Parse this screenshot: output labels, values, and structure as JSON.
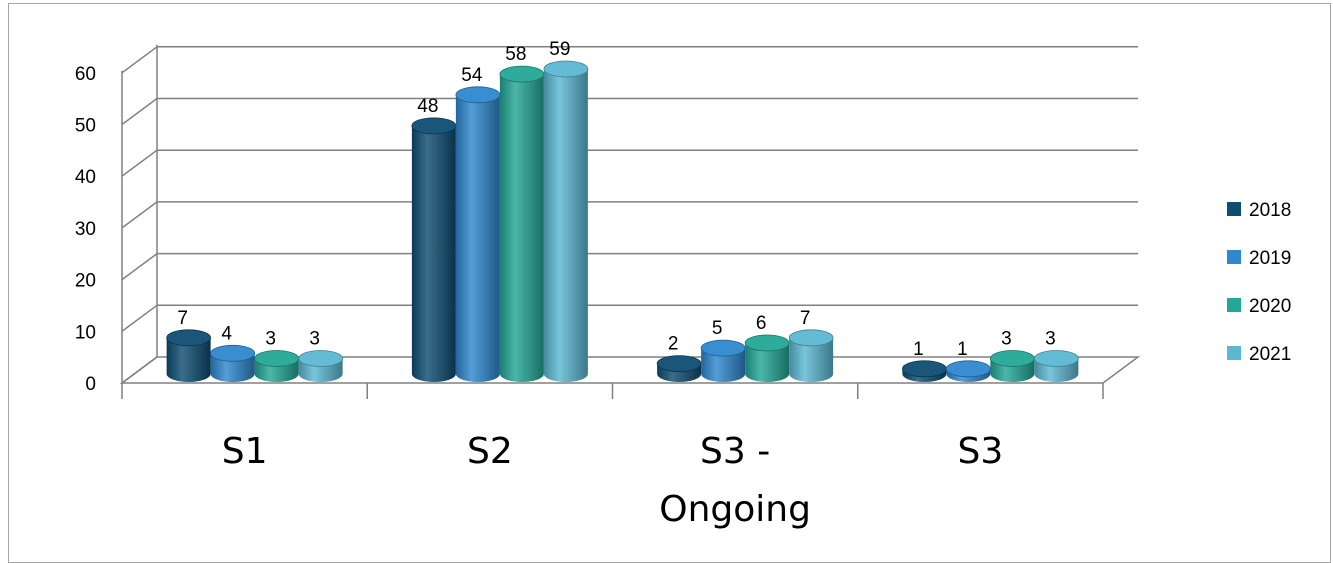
{
  "chart_data": {
    "type": "bar",
    "categories": [
      "S1",
      "S2",
      "S3 - Ongoing",
      "S3"
    ],
    "category_lines": [
      [
        "S1"
      ],
      [
        "S2"
      ],
      [
        "S3 -",
        "Ongoing"
      ],
      [
        "S3"
      ]
    ],
    "series": [
      {
        "name": "2018",
        "values": [
          7,
          48,
          2,
          1
        ],
        "color": "#0e4d72"
      },
      {
        "name": "2019",
        "values": [
          4,
          54,
          5,
          1
        ],
        "color": "#2f87cf"
      },
      {
        "name": "2020",
        "values": [
          3,
          58,
          6,
          3
        ],
        "color": "#24a796"
      },
      {
        "name": "2021",
        "values": [
          3,
          59,
          7,
          3
        ],
        "color": "#5cb8d2"
      }
    ],
    "yticks": [
      "0",
      "10",
      "20",
      "30",
      "40",
      "50",
      "60"
    ],
    "ylim": [
      0,
      60
    ],
    "grid": true,
    "legend_position": "right",
    "style": "3d-cylinder"
  }
}
